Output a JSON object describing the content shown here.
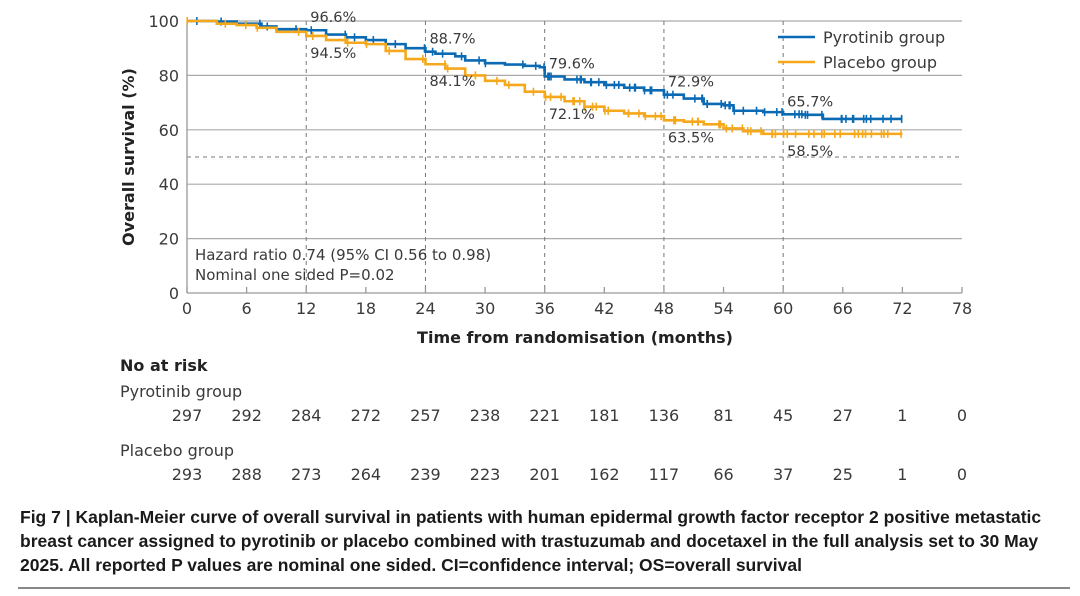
{
  "chart_data": {
    "type": "line",
    "subtype": "kaplan-meier",
    "xlabel": "Time from randomisation (months)",
    "ylabel": "Overall survival (%)",
    "xlim": [
      0,
      78
    ],
    "ylim": [
      0,
      100
    ],
    "x_ticks": [
      0,
      6,
      12,
      18,
      24,
      30,
      36,
      42,
      48,
      54,
      60,
      66,
      72,
      78
    ],
    "y_ticks": [
      0,
      20,
      40,
      60,
      80,
      100
    ],
    "grid": "horizontal solid at y ticks; dashed vertical at 12, 24, 36, 48, 60 months; dashed horizontal at 50%",
    "reference_line_y": 50,
    "landmark_times": [
      12,
      24,
      36,
      48,
      60
    ],
    "legend_position": "top-right",
    "series": [
      {
        "name": "Pyrotinib group",
        "color": "#0a6ab4",
        "x": [
          0,
          3,
          5,
          7.5,
          9,
          12,
          14,
          16,
          18,
          20,
          22,
          24,
          25,
          27,
          28,
          30,
          32,
          34,
          35.5,
          36,
          38,
          40,
          42,
          44,
          46,
          48,
          50,
          52,
          54,
          55,
          58,
          60,
          62,
          64,
          66,
          68,
          70,
          72
        ],
        "y": [
          100,
          99.8,
          99,
          98,
          97,
          96.6,
          95,
          94,
          93,
          91.5,
          90,
          88.7,
          88,
          87,
          85.5,
          84.5,
          84,
          83.5,
          83,
          79.6,
          78.5,
          77.5,
          76.5,
          75.5,
          74.5,
          72.9,
          71.5,
          69.5,
          69,
          67,
          66.5,
          65.7,
          65.5,
          64,
          64,
          64,
          64,
          64
        ],
        "landmarks": [
          {
            "time": 12,
            "label": "96.6%"
          },
          {
            "time": 24,
            "label": "88.7%"
          },
          {
            "time": 36,
            "label": "79.6%"
          },
          {
            "time": 48,
            "label": "72.9%"
          },
          {
            "time": 60,
            "label": "65.7%"
          }
        ]
      },
      {
        "name": "Placebo group",
        "color": "#f5a81c",
        "x": [
          0,
          3,
          5,
          7,
          9,
          12,
          14,
          16,
          18,
          20,
          22,
          24,
          26,
          28,
          30,
          32,
          34,
          36,
          38,
          40,
          42,
          44,
          46,
          48,
          50,
          52,
          54,
          56,
          58,
          60,
          62,
          64,
          66,
          68,
          70,
          72
        ],
        "y": [
          100,
          99,
          98.5,
          97.5,
          96,
          94.5,
          93,
          92,
          91.5,
          89,
          86,
          84.1,
          82.5,
          80,
          78,
          76.5,
          74,
          72.1,
          70.5,
          68.5,
          67,
          66,
          65,
          63.5,
          63,
          62,
          60.5,
          59.5,
          58.5,
          58.5,
          58.5,
          58.5,
          58.5,
          58.5,
          58.5,
          58.5
        ],
        "landmarks": [
          {
            "time": 12,
            "label": "94.5%"
          },
          {
            "time": 24,
            "label": "84.1%"
          },
          {
            "time": 36,
            "label": "72.1%"
          },
          {
            "time": 48,
            "label": "63.5%"
          },
          {
            "time": 60,
            "label": "58.5%"
          }
        ]
      }
    ],
    "annotations": [
      "Hazard ratio 0.74 (95% CI 0.56 to 0.98)",
      "Nominal one sided P=0.02"
    ],
    "number_at_risk": {
      "title": "No at risk",
      "times": [
        0,
        6,
        12,
        18,
        24,
        30,
        36,
        42,
        48,
        54,
        60,
        66,
        72,
        78
      ],
      "groups": [
        {
          "name": "Pyrotinib group",
          "values": [
            297,
            292,
            284,
            272,
            257,
            238,
            221,
            181,
            136,
            81,
            45,
            27,
            1,
            0
          ]
        },
        {
          "name": "Placebo group",
          "values": [
            293,
            288,
            273,
            264,
            239,
            223,
            201,
            162,
            117,
            66,
            37,
            25,
            1,
            0
          ]
        }
      ]
    }
  },
  "caption": "Fig 7 | Kaplan-Meier curve of overall survival in patients with human epidermal growth factor receptor 2 positive metastatic breast cancer assigned to pyrotinib or placebo combined with trastuzumab and docetaxel in the full analysis set to 30 May 2025. All reported P values are nominal one sided. CI=confidence interval; OS=overall survival"
}
